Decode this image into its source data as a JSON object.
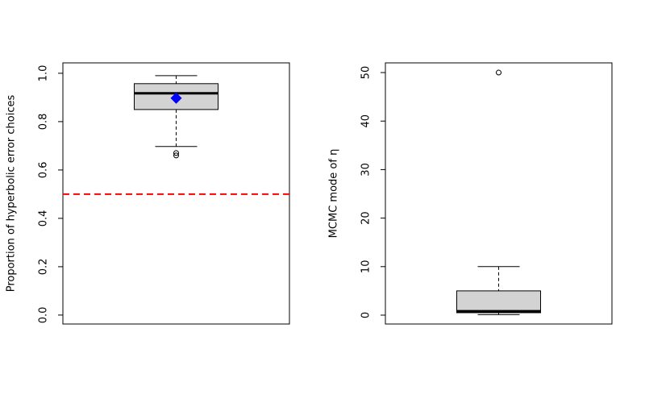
{
  "chart_data": [
    {
      "type": "box",
      "ylabel": "Proportion of hyperbolic error choices",
      "ylim": [
        -0.037,
        1.043
      ],
      "yticks": [
        {
          "value": 0,
          "label": "0.0"
        },
        0.2,
        0.4,
        0.6,
        0.8,
        {
          "value": 1,
          "label": "1.0"
        }
      ],
      "box": {
        "whisker_low": 0.697,
        "q1": 0.85,
        "median": 0.917,
        "q3": 0.957,
        "whisker_high": 0.99
      },
      "outliers": [
        0.67,
        0.66
      ],
      "mean": 0.897,
      "mean_color": "#0000ff",
      "hline": 0.5,
      "hline_color": "#ff0000",
      "box_color": "#d3d3d3"
    },
    {
      "type": "box",
      "ylabel": "MCMC mode of η",
      "ylim": [
        -1.83,
        52.0
      ],
      "yticks": [
        0,
        10,
        20,
        30,
        40,
        50
      ],
      "box": {
        "whisker_low": 0.1,
        "q1": 0.5,
        "median": 0.8,
        "q3": 5,
        "whisker_high": 10
      },
      "outliers": [
        50
      ],
      "box_color": "#d3d3d3"
    }
  ]
}
